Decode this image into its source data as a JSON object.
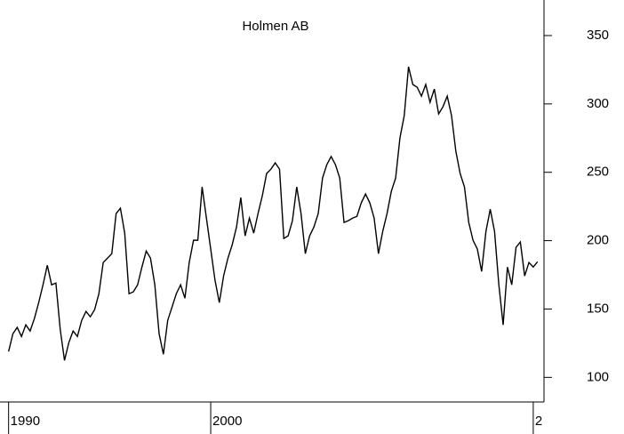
{
  "chart_data": {
    "type": "line",
    "title": "Holmen AB",
    "series": [
      {
        "name": null,
        "color": "#000000",
        "values": [
          118.9,
          131.9,
          136.5,
          129.9,
          138.4,
          133.9,
          143.0,
          154.7,
          167.7,
          182.0,
          167.7,
          169.0,
          135.2,
          112.4,
          125.4,
          133.9,
          129.9,
          141.7,
          148.2,
          144.3,
          149.5,
          161.2,
          184.0,
          187.2,
          190.5,
          219.8,
          223.7,
          205.5,
          161.2,
          162.5,
          167.7,
          180.7,
          192.4,
          187.2,
          167.7,
          131.9,
          116.9,
          141.7,
          151.4,
          161.2,
          167.7,
          157.9,
          184.0,
          200.3,
          200.3,
          239.3,
          216.5,
          193.8,
          171.0,
          154.7,
          174.2,
          187.2,
          197.0,
          210.0,
          231.5,
          203.5,
          216.5,
          205.5,
          219.8,
          232.8,
          249.1,
          252.3,
          256.9,
          252.3,
          201.6,
          203.5,
          214.6,
          239.3,
          219.8,
          190.5,
          203.5,
          210.0,
          219.8,
          245.8,
          255.6,
          261.5,
          255.6,
          245.8,
          213.3,
          214.6,
          216.5,
          217.8,
          227.6,
          234.1,
          227.6,
          216.5,
          190.5,
          206.8,
          219.8,
          236.1,
          245.8,
          275.1,
          291.4,
          327.2,
          314.2,
          312.2,
          305.7,
          314.2,
          301.2,
          310.9,
          292.7,
          297.9,
          305.7,
          291.4,
          265.4,
          249.1,
          239.3,
          213.3,
          200.3,
          193.8,
          177.5,
          206.8,
          223.0,
          206.8,
          167.7,
          138.4,
          180.7,
          167.7,
          195.1,
          199.0,
          174.2,
          184.0,
          180.7,
          184.6
        ]
      }
    ],
    "xlim": [
      -2,
      124.5
    ],
    "xticks": [
      {
        "value": 0,
        "label": "1990"
      },
      {
        "value": 47,
        "label": "2000"
      },
      {
        "value": 122,
        "label": "2"
      }
    ],
    "ylim": [
      82,
      376
    ],
    "yticks": [
      100,
      150,
      200,
      250,
      300,
      350
    ],
    "y_axis_side": "right"
  }
}
